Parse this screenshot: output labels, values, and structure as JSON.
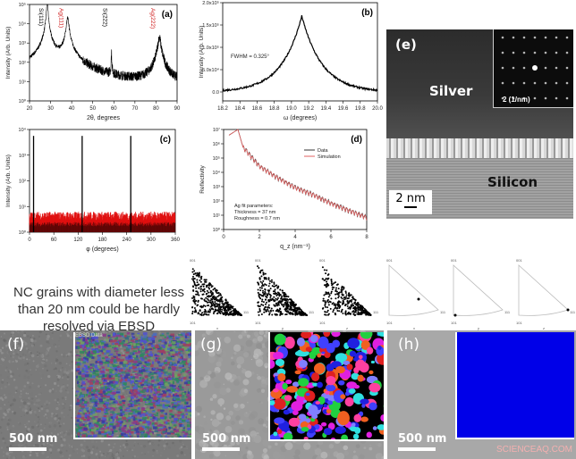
{
  "chart_data": [
    {
      "panel": "(a)",
      "type": "line",
      "xlabel": "2θ, degrees",
      "ylabel": "Intensity (Arb. Units)",
      "xlim": [
        20,
        90
      ],
      "xticks": [
        "20",
        "30",
        "40",
        "50",
        "60",
        "70",
        "80",
        "90"
      ],
      "yscale": "log",
      "ylim_log10": [
        0,
        5
      ],
      "yticks": [
        "10⁰",
        "10¹",
        "10²",
        "10³",
        "10⁴",
        "10⁵"
      ],
      "background_log10": [
        [
          20,
          1.4
        ],
        [
          30,
          1.1
        ],
        [
          50,
          0.6
        ],
        [
          90,
          0.35
        ]
      ],
      "peaks": [
        {
          "label": "Si(111)",
          "x": 28.4,
          "log10_intensity": 5.2,
          "width": 0.25,
          "color": "#000000"
        },
        {
          "label": "Ag(111)",
          "x": 38.1,
          "log10_intensity": 4.3,
          "width": 0.5,
          "color": "#d02020"
        },
        {
          "label": "Si(222)",
          "x": 58.9,
          "log10_intensity": 2.6,
          "width": 0.1,
          "color": "#000000"
        },
        {
          "label": "Ag(222)",
          "x": 81.6,
          "log10_intensity": 3.3,
          "width": 0.6,
          "color": "#d02020"
        }
      ]
    },
    {
      "panel": "(b)",
      "type": "line",
      "xlabel": "ω (degrees)",
      "ylabel": "Intensity (Arb. Units)",
      "xlim": [
        18.2,
        20.0
      ],
      "xticks": [
        "18.2",
        "18.4",
        "18.6",
        "18.8",
        "19.0",
        "19.2",
        "19.4",
        "19.6",
        "19.8",
        "20.0"
      ],
      "ylim": [
        -20000,
        200000
      ],
      "yticks": [
        "0.0",
        "5.0x10⁴",
        "1.0x10⁵",
        "1.5x10⁵",
        "2.0x10⁵"
      ],
      "peak_center": 19.12,
      "peak_height": 170000,
      "annotation": "FWHM = 0.325°"
    },
    {
      "panel": "(c)",
      "type": "line",
      "xlabel": "φ (degrees)",
      "ylabel": "Intensity (Arb. Units)",
      "xlim": [
        0,
        360
      ],
      "xticks": [
        "0",
        "60",
        "120",
        "180",
        "240",
        "300",
        "360"
      ],
      "yscale": "log",
      "ylim_log10": [
        0,
        4
      ],
      "yticks": [
        "10⁰",
        "10¹",
        "10²",
        "10³",
        "10⁴"
      ],
      "peaks_x": [
        10,
        130,
        250
      ],
      "peak_log10": 3.75,
      "background_log10": 0.45,
      "colors": {
        "noise": "#e01010",
        "base": "#000000"
      }
    },
    {
      "panel": "(d)",
      "type": "line",
      "xlabel": "q_z (nm⁻¹)",
      "ylabel": "Reflectivity",
      "xlim": [
        0,
        8
      ],
      "xticks": [
        "0",
        "2",
        "4",
        "6",
        "8"
      ],
      "yscale": "log",
      "ylim_log10": [
        0,
        7
      ],
      "yticks": [
        "10⁰",
        "10¹",
        "10²",
        "10³",
        "10⁴",
        "10⁵",
        "10⁶",
        "10⁷"
      ],
      "envelope_log10": [
        [
          0.3,
          6.6
        ],
        [
          0.8,
          7.0
        ],
        [
          1.1,
          5.7
        ],
        [
          2,
          4.4
        ],
        [
          3,
          3.6
        ],
        [
          4,
          2.9
        ],
        [
          5,
          2.4
        ],
        [
          6,
          1.8
        ],
        [
          7,
          1.3
        ],
        [
          8,
          0.8
        ]
      ],
      "series": [
        {
          "name": "Data",
          "color": "#333333"
        },
        {
          "name": "Simulation",
          "color": "#e06060"
        }
      ],
      "annotation": [
        "Ag fit parameters:",
        "Thickness = 37 nm",
        "Roughness = 0.7 nm"
      ]
    }
  ],
  "panel_labels": {
    "a": "(a)",
    "b": "(b)",
    "c": "(c)",
    "d": "(d)",
    "e": "(e)",
    "f": "(f)",
    "g": "(g)",
    "h": "(h)"
  },
  "tem": {
    "silver": "Silver",
    "silicon": "Silicon",
    "scale": "2 nm",
    "inset_scale": "2 (1/nm)"
  },
  "caption": "NC grains with diameter less than 20 nm could be hardly resolved via EBSD",
  "pole_figures": {
    "corners": [
      "001",
      "101",
      "111"
    ],
    "axes": [
      "x",
      "y",
      "z",
      "x",
      "y",
      "z"
    ]
  },
  "sem": {
    "scale": "500 nm",
    "ebsd_label": "EBSD Data"
  },
  "watermark": "SCIENCEAQ.COM",
  "colors": {
    "uniform_orientation": "#0000e8",
    "ag_label": "#d02020"
  }
}
